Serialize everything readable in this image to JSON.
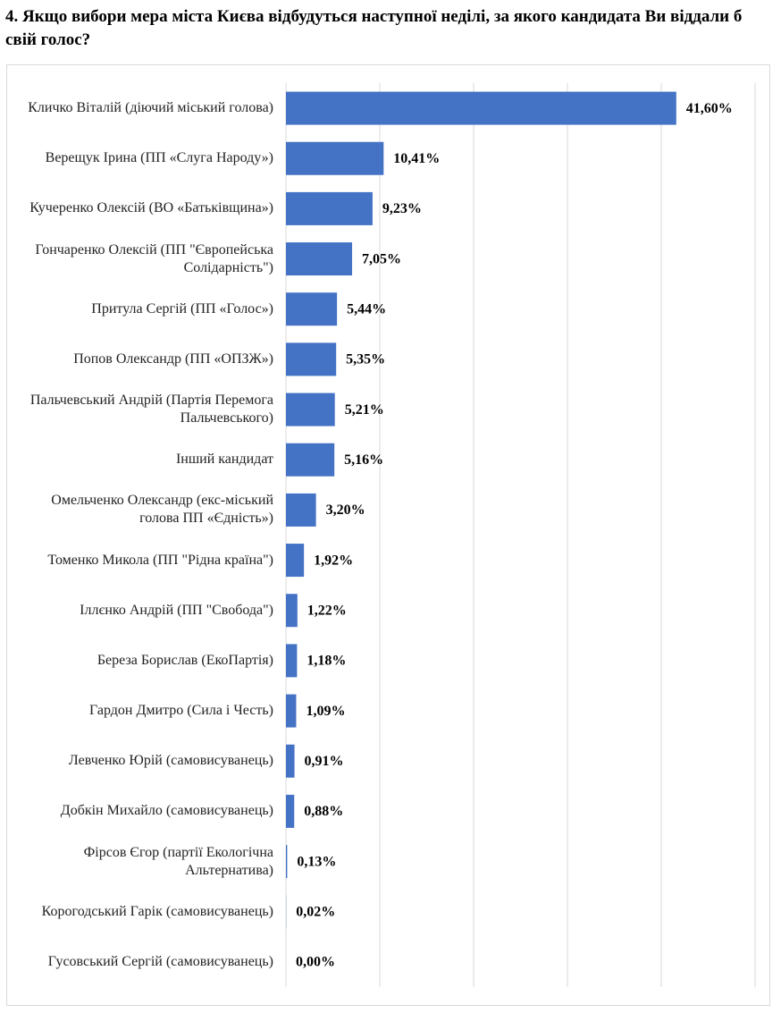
{
  "chart_data": {
    "type": "barh",
    "title": "4. Якщо вибори мера міста Києва відбудуться наступної неділі, за якого кандидата Ви віддали б свій голос?",
    "categories": [
      "Кличко Віталій (діючий міський голова)",
      "Верещук Ірина (ПП «Слуга Народу»)",
      "Кучеренко Олексій (ВО «Батьківщина»)",
      "Гончаренко Олексій (ПП \"Європейська Солідарність\")",
      "Притула Сергій (ПП «Голос»)",
      "Попов Олександр (ПП «ОПЗЖ»)",
      "Пальчевський Андрій (Партія Перемога Пальчевського)",
      "Інший кандидат",
      "Омельченко Олександр (екс-міський голова ПП «Єдність»)",
      "Томенко Микола (ПП \"Рідна країна\")",
      "Іллєнко Андрій (ПП \"Свобода\")",
      "Береза Борислав (ЕкоПартія)",
      "Гардон Дмитро (Сила і Честь)",
      "Левченко Юрій (самовисуванець)",
      "Добкін Михайло (самовисуванець)",
      "Фірсов Єгор (партії Екологічна Альтернатива)",
      "Корогодський Гарік (самовисуванець)",
      "Гусовський Сергій (самовисуванець)"
    ],
    "values": [
      41.6,
      10.41,
      9.23,
      7.05,
      5.44,
      5.35,
      5.21,
      5.16,
      3.2,
      1.92,
      1.22,
      1.18,
      1.09,
      0.91,
      0.88,
      0.13,
      0.02,
      0.0
    ],
    "value_labels": [
      "41,60%",
      "10,41%",
      "9,23%",
      "7,05%",
      "5,44%",
      "5,35%",
      "5,21%",
      "5,16%",
      "3,20%",
      "1,92%",
      "1,22%",
      "1,18%",
      "1,09%",
      "0,91%",
      "0,88%",
      "0,13%",
      "0,02%",
      "0,00%"
    ],
    "color": "#4472c4",
    "xlim": [
      0,
      50
    ],
    "xticks": [
      0,
      10,
      20,
      30,
      40,
      50
    ],
    "grid": true
  }
}
